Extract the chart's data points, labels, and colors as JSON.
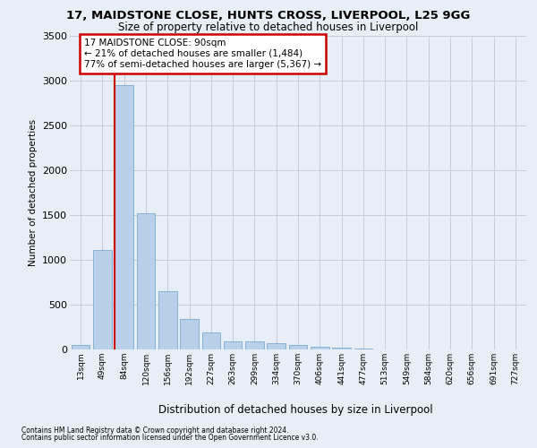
{
  "title_line1": "17, MAIDSTONE CLOSE, HUNTS CROSS, LIVERPOOL, L25 9GG",
  "title_line2": "Size of property relative to detached houses in Liverpool",
  "xlabel": "Distribution of detached houses by size in Liverpool",
  "ylabel": "Number of detached properties",
  "footnote1": "Contains HM Land Registry data © Crown copyright and database right 2024.",
  "footnote2": "Contains public sector information licensed under the Open Government Licence v3.0.",
  "annotation_title": "17 MAIDSTONE CLOSE: 90sqm",
  "annotation_line2": "← 21% of detached houses are smaller (1,484)",
  "annotation_line3": "77% of semi-detached houses are larger (5,367) →",
  "bar_color": "#b8d0ea",
  "bar_edge_color": "#7aaacf",
  "vline_color": "#cc0000",
  "annotation_edge_color": "#cc0000",
  "categories": [
    "13sqm",
    "49sqm",
    "84sqm",
    "120sqm",
    "156sqm",
    "192sqm",
    "227sqm",
    "263sqm",
    "299sqm",
    "334sqm",
    "370sqm",
    "406sqm",
    "441sqm",
    "477sqm",
    "513sqm",
    "549sqm",
    "584sqm",
    "620sqm",
    "656sqm",
    "691sqm",
    "727sqm"
  ],
  "values": [
    50,
    1110,
    2950,
    1520,
    650,
    340,
    190,
    95,
    95,
    70,
    55,
    35,
    20,
    10,
    5,
    0,
    0,
    0,
    0,
    0,
    0
  ],
  "ylim": [
    0,
    3500
  ],
  "yticks": [
    0,
    500,
    1000,
    1500,
    2000,
    2500,
    3000,
    3500
  ],
  "highlight_index": 2,
  "bg_color": "#e8eef5"
}
